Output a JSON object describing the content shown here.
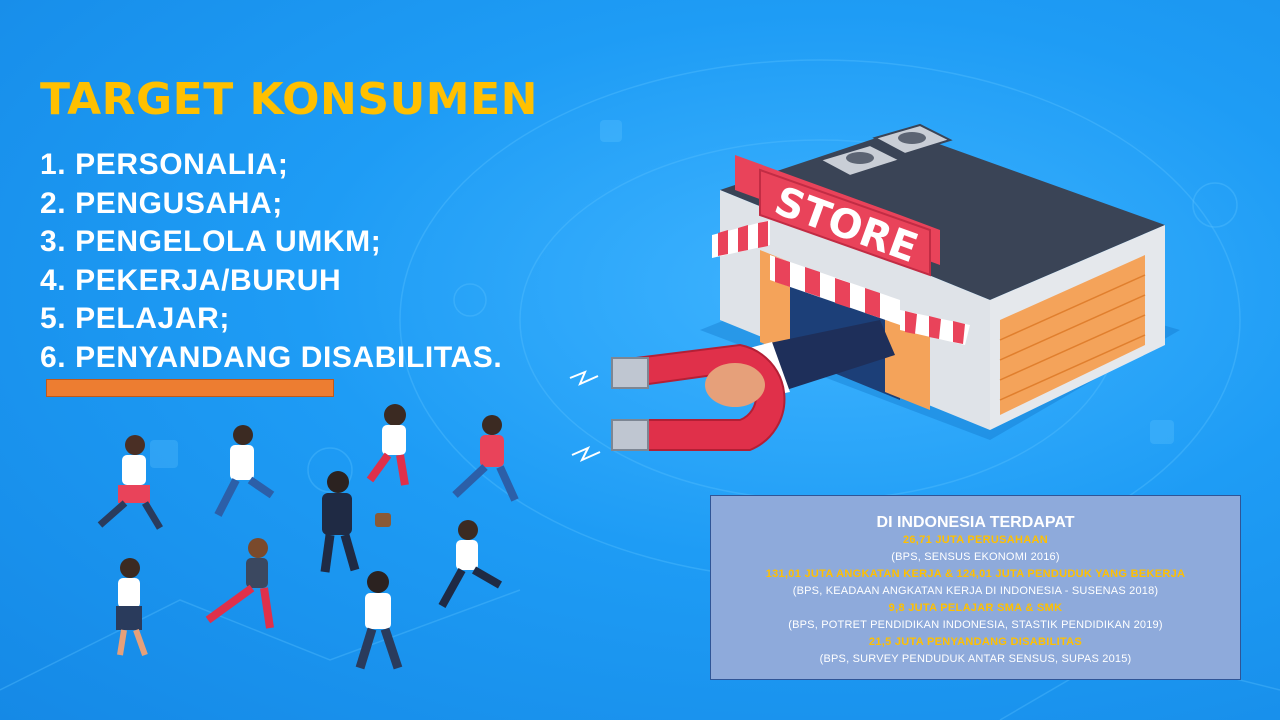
{
  "slide": {
    "title": "TARGET KONSUMEN",
    "target_list": [
      "1. PERSONALIA;",
      "2. PENGUSAHA;",
      "3. PENGELOLA UMKM;",
      "4. PEKERJA/BURUH",
      "5. PELAJAR;",
      "6. PENYANDANG  DISABILITAS."
    ],
    "accent_colors": {
      "title": "#ffc000",
      "background": "#1e9cf5",
      "bar": "#ed7d31",
      "info_box": "#8eaadb"
    }
  },
  "illustration": {
    "store_sign": "STORE",
    "icons": [
      "store-icon",
      "magnet-icon",
      "people-crowd-icon"
    ]
  },
  "info_box": {
    "title": "DI INDONESIA TERDAPAT",
    "entries": [
      {
        "stat": "26,71 JUTA PERUSAHAAN",
        "source": "(BPS, SENSUS EKONOMI 2016)"
      },
      {
        "stat": "131,01 JUTA ANGKATAN  KERJA & 124,01 JUTA PENDUDUK  YANG BEKERJA",
        "source": "(BPS, KEADAAN ANGKATAN KERJA DI INDONESIA - SUSENAS 2018)"
      },
      {
        "stat": "9,8 JUTA PELAJAR SMA & SMK",
        "source": "(BPS, POTRET  PENDIDIKAN INDONESIA, STASTIK PENDIDIKAN 2019)"
      },
      {
        "stat": "21,5 JUTA PENYANDANG  DISABILITAS",
        "source": "(BPS, SURVEY PENDUDUK ANTAR  SENSUS, SUPAS 2015)"
      }
    ]
  }
}
